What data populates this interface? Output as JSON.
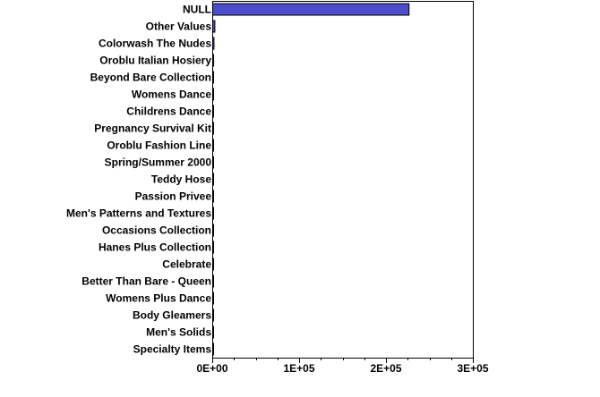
{
  "chart_data": {
    "type": "bar",
    "orientation": "horizontal",
    "categories": [
      "NULL",
      "Other Values",
      "Colorwash The Nudes",
      "Oroblu Italian Hosiery",
      "Beyond Bare Collection",
      "Womens Dance",
      "Childrens Dance",
      "Pregnancy Survival Kit",
      "Oroblu Fashion Line",
      "Spring/Summer 2000",
      "Teddy Hose",
      "Passion Privee",
      "Men's Patterns and Textures",
      "Occasions Collection",
      "Hanes Plus Collection",
      "Celebrate",
      "Better Than Bare - Queen",
      "Womens Plus Dance",
      "Body Gleamers",
      "Men's Solids",
      "Specialty Items"
    ],
    "values": [
      226000,
      2500,
      1500,
      1100,
      900,
      700,
      650,
      600,
      550,
      500,
      450,
      400,
      350,
      300,
      280,
      250,
      220,
      200,
      180,
      160,
      140
    ],
    "xlim": [
      0,
      300000
    ],
    "xticks": [
      0,
      100000,
      200000,
      300000
    ],
    "xtick_labels": [
      "0E+00",
      "1E+05",
      "2E+05",
      "3E+05"
    ],
    "minor_ticks_per_major": 3,
    "bar_color": "#4d4dcc",
    "title": "",
    "xlabel": "",
    "ylabel": "",
    "grid": false,
    "legend": "none"
  }
}
